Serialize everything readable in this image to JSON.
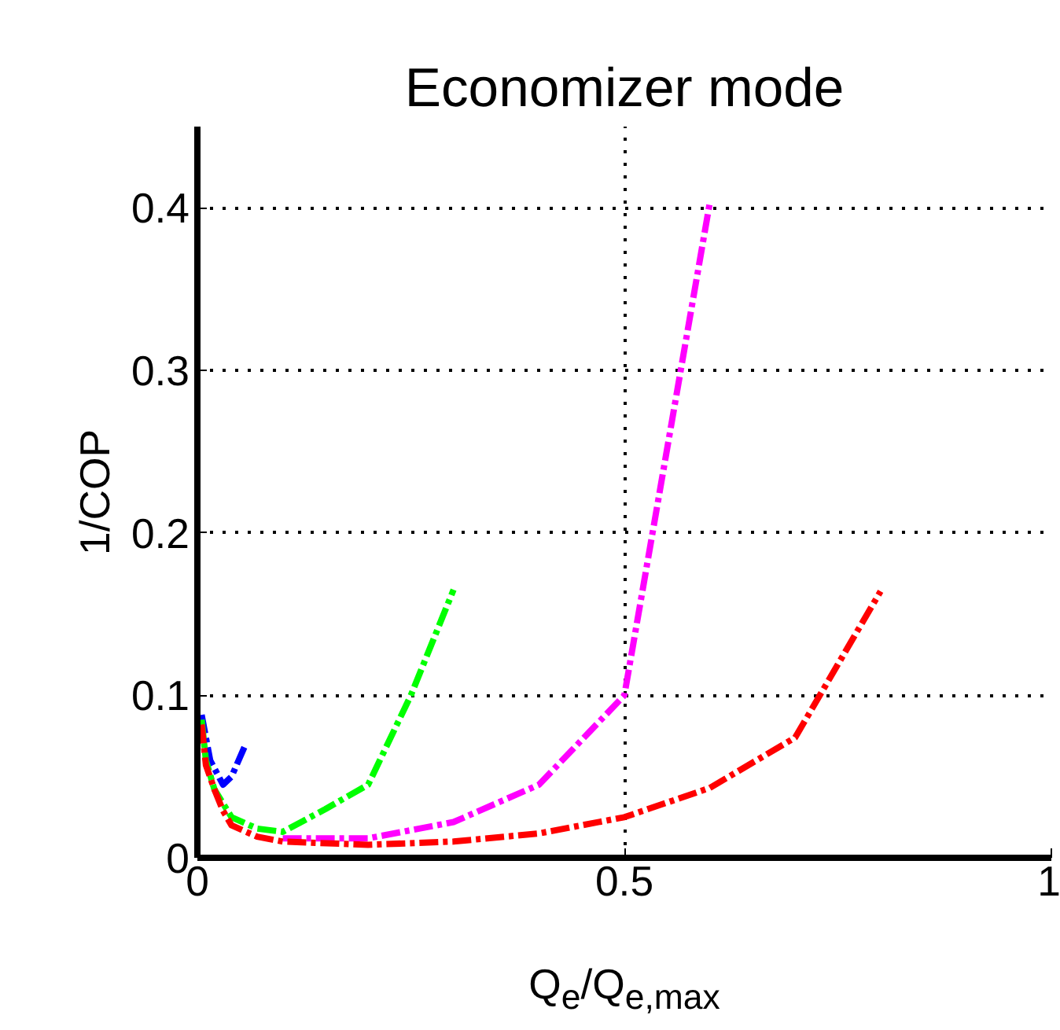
{
  "chart_data": {
    "type": "line",
    "title": "Economizer mode",
    "xlabel": "Q$_{e}$/Q$_{e,max}$",
    "ylabel": "1/COP",
    "xlim": [
      0,
      1
    ],
    "ylim": [
      0,
      0.45
    ],
    "xticks": [
      0,
      0.5,
      1
    ],
    "yticks": [
      0,
      0.1,
      0.2,
      0.3,
      0.4
    ],
    "grid": true,
    "line_style": "dashdot",
    "marker": "none",
    "series": [
      {
        "color": "#0000ff",
        "x": [
          0.005,
          0.015,
          0.03,
          0.04,
          0.055
        ],
        "values": [
          0.088,
          0.06,
          0.045,
          0.05,
          0.068
        ]
      },
      {
        "color": "#00ff00",
        "x": [
          0.005,
          0.01,
          0.02,
          0.04,
          0.07,
          0.1,
          0.15,
          0.2,
          0.25,
          0.3
        ],
        "values": [
          0.085,
          0.06,
          0.042,
          0.025,
          0.018,
          0.016,
          0.03,
          0.045,
          0.1,
          0.165
        ]
      },
      {
        "color": "#ff00ff",
        "x": [
          0.1,
          0.2,
          0.3,
          0.4,
          0.5,
          0.6
        ],
        "values": [
          0.012,
          0.012,
          0.022,
          0.045,
          0.1,
          0.403
        ]
      },
      {
        "color": "#ff0000",
        "x": [
          0.005,
          0.01,
          0.02,
          0.03,
          0.04,
          0.07,
          0.1,
          0.2,
          0.3,
          0.4,
          0.5,
          0.6,
          0.7,
          0.8
        ],
        "values": [
          0.082,
          0.057,
          0.042,
          0.029,
          0.02,
          0.013,
          0.01,
          0.008,
          0.01,
          0.015,
          0.025,
          0.043,
          0.074,
          0.164
        ]
      }
    ]
  }
}
